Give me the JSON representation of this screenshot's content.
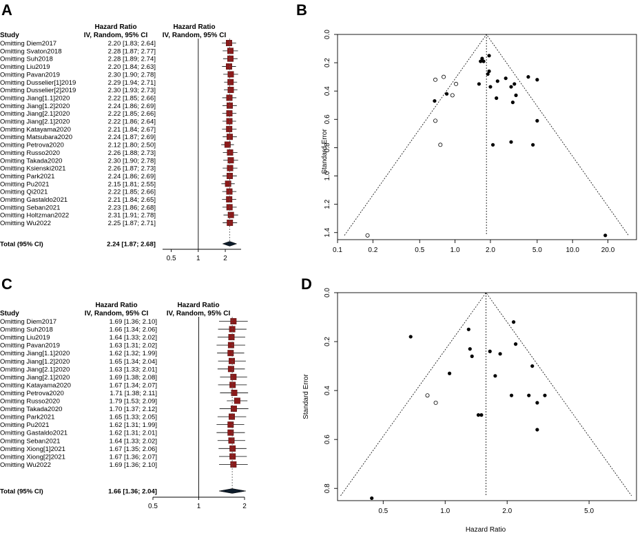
{
  "panel_labels": [
    "A",
    "B",
    "C",
    "D"
  ],
  "chart_data": [
    {
      "type": "forest",
      "panel": "A",
      "header": {
        "study": "Study",
        "effect_title": "Hazard Ratio",
        "effect_sub": "IV, Random, 95% CI",
        "plot_title": "Hazard Ratio",
        "plot_sub": "IV, Random, 95% CI"
      },
      "rows": [
        {
          "label": "Omitting Diem2017",
          "ci_text": "2.20 [1.83; 2.64]",
          "hr": 2.2,
          "lo": 1.83,
          "hi": 2.64
        },
        {
          "label": "Omitting Svaton2018",
          "ci_text": "2.28 [1.87; 2.77]",
          "hr": 2.28,
          "lo": 1.87,
          "hi": 2.77
        },
        {
          "label": "Omitting Suh2018",
          "ci_text": "2.28 [1.89; 2.74]",
          "hr": 2.28,
          "lo": 1.89,
          "hi": 2.74
        },
        {
          "label": "Omitting Liu2019",
          "ci_text": "2.20 [1.84; 2.63]",
          "hr": 2.2,
          "lo": 1.84,
          "hi": 2.63
        },
        {
          "label": "Omitting Pavan2019",
          "ci_text": "2.30 [1.90; 2.78]",
          "hr": 2.3,
          "lo": 1.9,
          "hi": 2.78
        },
        {
          "label": "Omitting Dusselier[1]2019",
          "ci_text": "2.29 [1.94; 2.71]",
          "hr": 2.29,
          "lo": 1.94,
          "hi": 2.71
        },
        {
          "label": "Omitting Dusselier[2]2019",
          "ci_text": "2.30 [1.93; 2.73]",
          "hr": 2.3,
          "lo": 1.93,
          "hi": 2.73
        },
        {
          "label": "Omitting Jiang[1.1]2020",
          "ci_text": "2.22 [1.85; 2.66]",
          "hr": 2.22,
          "lo": 1.85,
          "hi": 2.66
        },
        {
          "label": "Omitting Jiang[1.2]2020",
          "ci_text": "2.24 [1.86; 2.69]",
          "hr": 2.24,
          "lo": 1.86,
          "hi": 2.69
        },
        {
          "label": "Omitting Jiang[2.1]2020",
          "ci_text": "2.22 [1.85; 2.66]",
          "hr": 2.22,
          "lo": 1.85,
          "hi": 2.66
        },
        {
          "label": "Omitting Jiang[2.1]2020",
          "ci_text": "2.22 [1.86; 2.64]",
          "hr": 2.22,
          "lo": 1.86,
          "hi": 2.64
        },
        {
          "label": "Omitting Katayama2020",
          "ci_text": "2.21 [1.84; 2.67]",
          "hr": 2.21,
          "lo": 1.84,
          "hi": 2.67
        },
        {
          "label": "Omitting Matsubara2020",
          "ci_text": "2.24 [1.87; 2.69]",
          "hr": 2.24,
          "lo": 1.87,
          "hi": 2.69
        },
        {
          "label": "Omitting Petrova2020",
          "ci_text": "2.12 [1.80; 2.50]",
          "hr": 2.12,
          "lo": 1.8,
          "hi": 2.5
        },
        {
          "label": "Omitting Russo2020",
          "ci_text": "2.26 [1.88; 2.73]",
          "hr": 2.26,
          "lo": 1.88,
          "hi": 2.73
        },
        {
          "label": "Omitting Takada2020",
          "ci_text": "2.30 [1.90; 2.78]",
          "hr": 2.3,
          "lo": 1.9,
          "hi": 2.78
        },
        {
          "label": "Omitting Ksienski2021",
          "ci_text": "2.26 [1.87; 2.73]",
          "hr": 2.26,
          "lo": 1.87,
          "hi": 2.73
        },
        {
          "label": "Omitting Park2021",
          "ci_text": "2.24 [1.86; 2.69]",
          "hr": 2.24,
          "lo": 1.86,
          "hi": 2.69
        },
        {
          "label": "Omitting Pu2021",
          "ci_text": "2.15 [1.81; 2.55]",
          "hr": 2.15,
          "lo": 1.81,
          "hi": 2.55
        },
        {
          "label": "Omitting Qi2021",
          "ci_text": "2.22 [1.85; 2.66]",
          "hr": 2.22,
          "lo": 1.85,
          "hi": 2.66
        },
        {
          "label": "Omitting Gastaldo2021",
          "ci_text": "2.21 [1.84; 2.65]",
          "hr": 2.21,
          "lo": 1.84,
          "hi": 2.65
        },
        {
          "label": "Omitting Seban2021",
          "ci_text": "2.23 [1.86; 2.68]",
          "hr": 2.23,
          "lo": 1.86,
          "hi": 2.68
        },
        {
          "label": "Omitting Holtzman2022",
          "ci_text": "2.31 [1.91; 2.78]",
          "hr": 2.31,
          "lo": 1.91,
          "hi": 2.78
        },
        {
          "label": "Omitting Wu2022",
          "ci_text": "2.25 [1.87; 2.71]",
          "hr": 2.25,
          "lo": 1.87,
          "hi": 2.71
        }
      ],
      "total": {
        "label": "Total (95% CI)",
        "ci_text": "2.24 [1.87; 2.68]",
        "hr": 2.24,
        "lo": 1.87,
        "hi": 2.68
      },
      "x_ticks": [
        0.5,
        1,
        2
      ],
      "x_tick_labels": [
        "0.5",
        "1",
        "2"
      ],
      "xlim": [
        0.4,
        3.0
      ],
      "reference_line": 1,
      "colors": {
        "box": "#8b1a1a",
        "diamond": "#0d1b2a"
      }
    },
    {
      "type": "funnel",
      "panel": "B",
      "xlabel": "",
      "ylabel": "Standard Error",
      "x_scale": "log",
      "xlim": [
        0.1,
        35
      ],
      "ylim": [
        1.45,
        0
      ],
      "x_ticks": [
        0.1,
        0.2,
        0.5,
        1.0,
        2.0,
        5.0,
        10.0,
        20.0
      ],
      "x_tick_labels": [
        "0.1",
        "0.2",
        "0.5",
        "1.0",
        "2.0",
        "5.0",
        "10.0",
        "20.0"
      ],
      "y_ticks": [
        0.0,
        0.2,
        0.4,
        0.6,
        0.8,
        1.0,
        1.2,
        1.4
      ],
      "y_tick_labels": [
        "0.0",
        "0.2",
        "0.4",
        "0.6",
        "0.8",
        "1.0",
        "1.2",
        "1.4"
      ],
      "pooled": 1.85,
      "funnel_base_se": 1.42,
      "observed": [
        [
          1.7,
          0.17
        ],
        [
          1.65,
          0.19
        ],
        [
          1.75,
          0.19
        ],
        [
          1.95,
          0.15
        ],
        [
          1.9,
          0.28
        ],
        [
          1.95,
          0.26
        ],
        [
          1.6,
          0.35
        ],
        [
          2.0,
          0.37
        ],
        [
          2.25,
          0.45
        ],
        [
          2.3,
          0.33
        ],
        [
          2.7,
          0.31
        ],
        [
          3.0,
          0.37
        ],
        [
          3.2,
          0.35
        ],
        [
          3.1,
          0.48
        ],
        [
          3.3,
          0.43
        ],
        [
          4.2,
          0.3
        ],
        [
          5.0,
          0.32
        ],
        [
          5.0,
          0.61
        ],
        [
          0.67,
          0.47
        ],
        [
          0.85,
          0.42
        ],
        [
          2.1,
          0.78
        ],
        [
          3.0,
          0.76
        ],
        [
          4.6,
          0.78
        ],
        [
          19.0,
          1.42
        ]
      ],
      "imputed": [
        [
          0.8,
          0.3
        ],
        [
          0.68,
          0.32
        ],
        [
          1.02,
          0.35
        ],
        [
          0.95,
          0.43
        ],
        [
          0.68,
          0.61
        ],
        [
          0.75,
          0.78
        ],
        [
          0.18,
          1.42
        ]
      ]
    },
    {
      "type": "forest",
      "panel": "C",
      "header": {
        "study": "Study",
        "effect_title": "Hazard Ratio",
        "effect_sub": "IV, Random, 95% CI",
        "plot_title": "Hazard Ratio",
        "plot_sub": "IV, Random, 95% CI"
      },
      "rows": [
        {
          "label": "Omitting Diem2017",
          "ci_text": "1.69 [1.36; 2.10]",
          "hr": 1.69,
          "lo": 1.36,
          "hi": 2.1
        },
        {
          "label": "Omitting Suh2018",
          "ci_text": "1.66 [1.34; 2.06]",
          "hr": 1.66,
          "lo": 1.34,
          "hi": 2.06
        },
        {
          "label": "Omitting Liu2019",
          "ci_text": "1.64 [1.33; 2.02]",
          "hr": 1.64,
          "lo": 1.33,
          "hi": 2.02
        },
        {
          "label": "Omitting Pavan2019",
          "ci_text": "1.63 [1.31; 2.02]",
          "hr": 1.63,
          "lo": 1.31,
          "hi": 2.02
        },
        {
          "label": "Omitting Jiang[1.1]2020",
          "ci_text": "1.62 [1.32; 1.99]",
          "hr": 1.62,
          "lo": 1.32,
          "hi": 1.99
        },
        {
          "label": "Omitting Jiang[1.2]2020",
          "ci_text": "1.65 [1.34; 2.04]",
          "hr": 1.65,
          "lo": 1.34,
          "hi": 2.04
        },
        {
          "label": "Omitting Jiang[2.1]2020",
          "ci_text": "1.63 [1.33; 2.01]",
          "hr": 1.63,
          "lo": 1.33,
          "hi": 2.01
        },
        {
          "label": "Omitting Jiang[2.1]2020",
          "ci_text": "1.69 [1.38; 2.08]",
          "hr": 1.69,
          "lo": 1.38,
          "hi": 2.08
        },
        {
          "label": "Omitting Katayama2020",
          "ci_text": "1.67 [1.34; 2.07]",
          "hr": 1.67,
          "lo": 1.34,
          "hi": 2.07
        },
        {
          "label": "Omitting Petrova2020",
          "ci_text": "1.71 [1.38; 2.11]",
          "hr": 1.71,
          "lo": 1.38,
          "hi": 2.11
        },
        {
          "label": "Omitting Russo2020",
          "ci_text": "1.79 [1.53; 2.09]",
          "hr": 1.79,
          "lo": 1.53,
          "hi": 2.09
        },
        {
          "label": "Omitting Takada2020",
          "ci_text": "1.70 [1.37; 2.12]",
          "hr": 1.7,
          "lo": 1.37,
          "hi": 2.12
        },
        {
          "label": "Omitting Park2021",
          "ci_text": "1.65 [1.33; 2.05]",
          "hr": 1.65,
          "lo": 1.33,
          "hi": 2.05
        },
        {
          "label": "Omitting Pu2021",
          "ci_text": "1.62 [1.31; 1.99]",
          "hr": 1.62,
          "lo": 1.31,
          "hi": 1.99
        },
        {
          "label": "Omitting Gastaldo2021",
          "ci_text": "1.62 [1.31; 2.01]",
          "hr": 1.62,
          "lo": 1.31,
          "hi": 2.01
        },
        {
          "label": "Omitting Seban2021",
          "ci_text": "1.64 [1.33; 2.02]",
          "hr": 1.64,
          "lo": 1.33,
          "hi": 2.02
        },
        {
          "label": "Omitting Xiong[1]2021",
          "ci_text": "1.67 [1.35; 2.06]",
          "hr": 1.67,
          "lo": 1.35,
          "hi": 2.06
        },
        {
          "label": "Omitting Xiong[2]2021",
          "ci_text": "1.67 [1.36; 2.07]",
          "hr": 1.67,
          "lo": 1.36,
          "hi": 2.07
        },
        {
          "label": "Omitting Wu2022",
          "ci_text": "1.69 [1.36; 2.10]",
          "hr": 1.69,
          "lo": 1.36,
          "hi": 2.1
        }
      ],
      "total": {
        "label": "Total (95% CI)",
        "ci_text": "1.66 [1.36; 2.04]",
        "hr": 1.66,
        "lo": 1.36,
        "hi": 2.04
      },
      "x_ticks": [
        0.5,
        1,
        2
      ],
      "x_tick_labels": [
        "0.5",
        "1",
        "2"
      ],
      "xlim": [
        0.5,
        2.0
      ],
      "reference_line": 1,
      "colors": {
        "box": "#8b1a1a",
        "diamond": "#0d1b2a"
      }
    },
    {
      "type": "funnel",
      "panel": "D",
      "xlabel": "Hazard Ratio",
      "ylabel": "Standard Error",
      "x_scale": "log",
      "xlim": [
        0.3,
        8.5
      ],
      "ylim": [
        0.85,
        0
      ],
      "x_ticks": [
        0.5,
        1.0,
        2.0,
        5.0
      ],
      "x_tick_labels": [
        "0.5",
        "1.0",
        "2.0",
        "5.0"
      ],
      "y_ticks": [
        0.0,
        0.2,
        0.4,
        0.6,
        0.8
      ],
      "y_tick_labels": [
        "0.0",
        "0.2",
        "0.4",
        "0.6",
        "0.8"
      ],
      "pooled": 1.58,
      "funnel_base_se": 0.83,
      "observed": [
        [
          2.15,
          0.12
        ],
        [
          0.68,
          0.18
        ],
        [
          1.3,
          0.15
        ],
        [
          2.2,
          0.21
        ],
        [
          1.32,
          0.23
        ],
        [
          1.35,
          0.26
        ],
        [
          1.65,
          0.24
        ],
        [
          1.85,
          0.25
        ],
        [
          2.65,
          0.3
        ],
        [
          1.05,
          0.33
        ],
        [
          1.75,
          0.34
        ],
        [
          2.1,
          0.42
        ],
        [
          2.55,
          0.42
        ],
        [
          3.05,
          0.42
        ],
        [
          2.8,
          0.45
        ],
        [
          1.45,
          0.5
        ],
        [
          1.5,
          0.5
        ],
        [
          2.8,
          0.56
        ],
        [
          0.44,
          0.84
        ]
      ],
      "imputed": [
        [
          0.82,
          0.42
        ],
        [
          0.9,
          0.45
        ]
      ]
    }
  ]
}
